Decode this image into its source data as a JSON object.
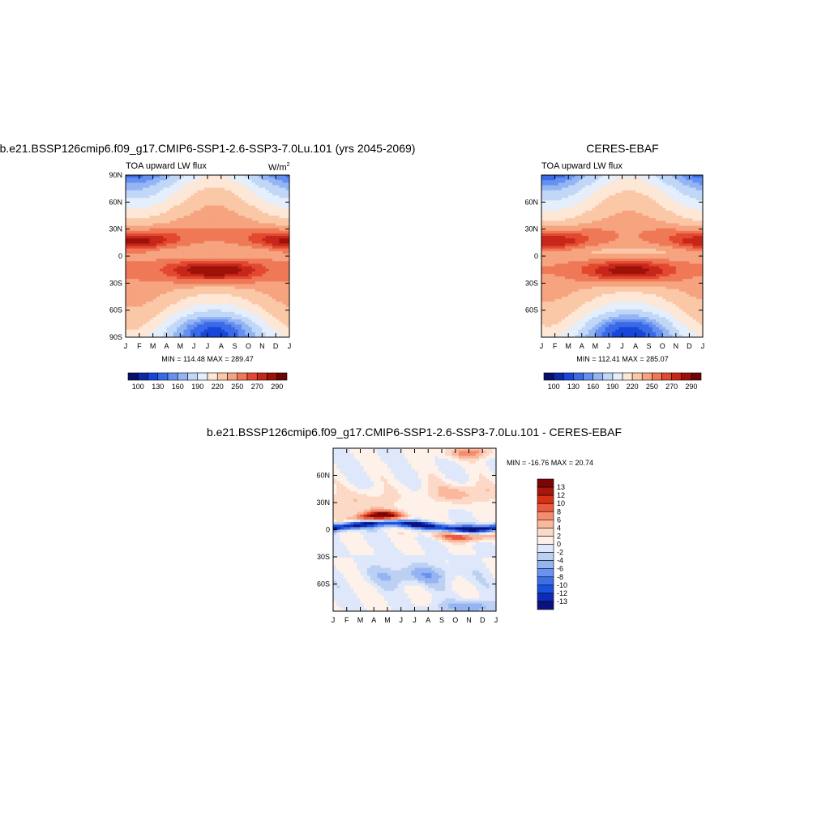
{
  "chart_data": [
    {
      "type": "heatmap",
      "title": "b.e21.BSSP126cmip6.f09_g17.CMIP6-SSP1-2.6-SSP3-7.0Lu.101 (yrs 2045-2069)",
      "subtitle_left": "TOA upward LW flux",
      "units_base": "W/m",
      "units_exp": "2",
      "x": [
        "J",
        "F",
        "M",
        "A",
        "M",
        "J",
        "J",
        "A",
        "S",
        "O",
        "N",
        "D",
        "J"
      ],
      "y_ticks": [
        "90N",
        "60N",
        "30N",
        "0",
        "30S",
        "60S",
        "90S"
      ],
      "ylim": [
        -90,
        90
      ],
      "stats": "MIN = 114.48 MAX = 289.47",
      "colorbar_ticks": [
        "100",
        "130",
        "160",
        "190",
        "220",
        "250",
        "270",
        "290"
      ],
      "field": "olr",
      "min": 114.48,
      "max": 289.47
    },
    {
      "type": "heatmap",
      "title": "CERES-EBAF",
      "subtitle_left": "TOA upward LW flux",
      "x": [
        "J",
        "F",
        "M",
        "A",
        "M",
        "J",
        "J",
        "A",
        "S",
        "O",
        "N",
        "D",
        "J"
      ],
      "y_ticks": [
        "60N",
        "30N",
        "0",
        "30S",
        "60S"
      ],
      "ylim": [
        -90,
        90
      ],
      "stats": "MIN = 112.41 MAX = 285.07",
      "colorbar_ticks": [
        "100",
        "130",
        "160",
        "190",
        "220",
        "250",
        "270",
        "290"
      ],
      "field": "olr",
      "min": 112.41,
      "max": 285.07
    },
    {
      "type": "heatmap",
      "title": "b.e21.BSSP126cmip6.f09_g17.CMIP6-SSP1-2.6-SSP3-7.0Lu.101 - CERES-EBAF",
      "x": [
        "J",
        "F",
        "M",
        "A",
        "M",
        "J",
        "J",
        "A",
        "S",
        "O",
        "N",
        "D",
        "J"
      ],
      "y_ticks": [
        "60N",
        "30N",
        "0",
        "30S",
        "60S"
      ],
      "ylim": [
        -90,
        90
      ],
      "stats": "MIN = -16.76 MAX =  20.74",
      "colorbar_ticks": [
        "13",
        "12",
        "10",
        "8",
        "6",
        "4",
        "2",
        "0",
        "-2",
        "-4",
        "-6",
        "-8",
        "-10",
        "-12",
        "-13"
      ],
      "field": "diff",
      "min": -16.76,
      "max": 20.74
    }
  ]
}
